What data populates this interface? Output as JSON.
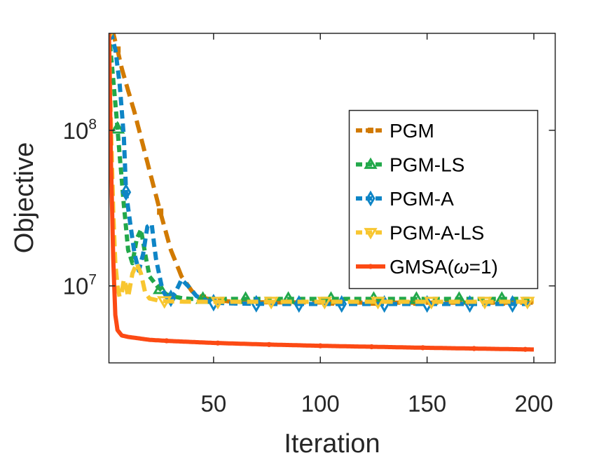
{
  "chart_data": {
    "type": "line",
    "xlabel": "Iteration",
    "ylabel": "Objective",
    "xlim": [
      1,
      210
    ],
    "ylim": [
      3200000,
      420000000
    ],
    "yscale": "log",
    "x_ticks": [
      50,
      100,
      150,
      200
    ],
    "y_ticks": [
      {
        "value": 10000000,
        "base": "10",
        "exp": "7"
      },
      {
        "value": 100000000,
        "base": "10",
        "exp": "8"
      }
    ],
    "grid": false,
    "legend_position": "upper-right",
    "series": [
      {
        "name": "PGM",
        "color": "#D17A00",
        "dash": "18,9",
        "marker": "square",
        "x": [
          1,
          3,
          5,
          7,
          10,
          13,
          16,
          20,
          25,
          30,
          35,
          40,
          45,
          50,
          60,
          70,
          80,
          100,
          125,
          150,
          175,
          200
        ],
        "y": [
          420000000,
          420000000,
          330000000,
          250000000,
          180000000,
          130000000,
          90000000,
          55000000,
          30000000,
          17000000,
          11500000,
          9200000,
          8400000,
          8100000,
          7900000,
          7850000,
          7830000,
          7820000,
          7810000,
          7800000,
          7800000,
          7800000
        ],
        "marker_x": [
          5,
          25,
          45,
          65,
          85,
          105,
          125,
          145,
          165,
          185
        ]
      },
      {
        "name": "PGM-LS",
        "color": "#22A84A",
        "dash": "10,6",
        "marker": "triangle-up",
        "x": [
          1,
          2,
          4,
          6,
          8,
          10,
          12,
          14,
          16,
          18,
          20,
          24,
          28,
          32,
          36,
          40,
          45,
          50,
          60,
          80,
          100,
          125,
          150,
          175,
          200
        ],
        "y": [
          420000000,
          300000000,
          150000000,
          70000000,
          33000000,
          17000000,
          14000000,
          20000000,
          23000000,
          16000000,
          11500000,
          9800000,
          8800000,
          8500000,
          8300000,
          8250000,
          8250000,
          8250000,
          8250000,
          8250000,
          8250000,
          8250000,
          8250000,
          8250000,
          8250000
        ],
        "marker_x": [
          5,
          25,
          45,
          65,
          85,
          105,
          125,
          145,
          165,
          185
        ]
      },
      {
        "name": "PGM-A",
        "color": "#0E85C6",
        "dash": "12,7",
        "marker": "diamond",
        "x": [
          1,
          2,
          4,
          6,
          8,
          9,
          11,
          13,
          15,
          17,
          19,
          21,
          23,
          26,
          29,
          32,
          35,
          38,
          42,
          46,
          50,
          60,
          80,
          100,
          125,
          150,
          175,
          200
        ],
        "y": [
          420000000,
          420000000,
          330000000,
          200000000,
          90000000,
          40000000,
          25000000,
          16000000,
          12500000,
          16000000,
          24000000,
          25000000,
          15000000,
          9500000,
          8000000,
          9000000,
          11000000,
          10000000,
          8600000,
          8100000,
          7800000,
          7700000,
          7650000,
          7650000,
          7650000,
          7650000,
          7650000,
          7650000
        ],
        "marker_x": [
          9,
          30,
          50,
          70,
          90,
          110,
          130,
          150,
          170,
          190
        ]
      },
      {
        "name": "PGM-A-LS",
        "color": "#F8C630",
        "dash": "16,8",
        "marker": "triangle-down",
        "x": [
          1,
          2,
          3,
          4,
          5,
          6,
          7,
          8,
          9,
          10,
          12,
          14,
          16,
          18,
          20,
          25,
          30,
          40,
          50,
          70,
          100,
          125,
          150,
          175,
          200
        ],
        "y": [
          420000000,
          100000000,
          30000000,
          14000000,
          10000000,
          8500000,
          9000000,
          11000000,
          10000000,
          8500000,
          12000000,
          14000000,
          12000000,
          9000000,
          8300000,
          8000000,
          7950000,
          7900000,
          7900000,
          7900000,
          7900000,
          7900000,
          7900000,
          7900000,
          7900000
        ],
        "marker_x": [
          1,
          27,
          52,
          77,
          102,
          127,
          152,
          177,
          197
        ]
      },
      {
        "name": "GMSA(ω=1)",
        "legend_prefix": "GMSA(",
        "legend_symbol": "ω",
        "legend_suffix": "=1)",
        "color": "#FC4A14",
        "dash": "",
        "marker": "dot",
        "x": [
          1,
          2,
          3,
          4,
          5,
          7,
          10,
          15,
          20,
          30,
          40,
          50,
          75,
          100,
          125,
          150,
          175,
          200
        ],
        "y": [
          420000000,
          60000000,
          15000000,
          6500000,
          5200000,
          4800000,
          4700000,
          4600000,
          4500000,
          4420000,
          4360000,
          4300000,
          4200000,
          4120000,
          4060000,
          4000000,
          3950000,
          3900000
        ],
        "marker_x": [
          28,
          52,
          76,
          100,
          124,
          148,
          172,
          196
        ]
      }
    ]
  }
}
